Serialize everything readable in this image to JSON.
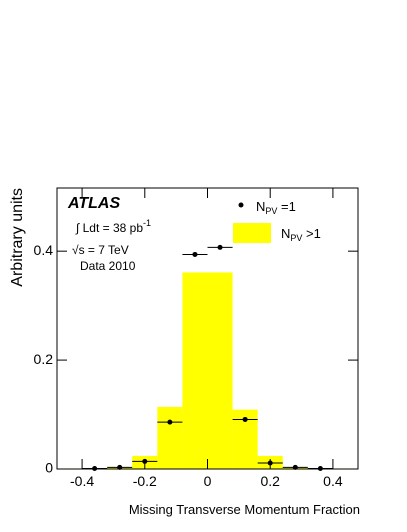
{
  "chart_data": {
    "type": "histogram",
    "xlabel": "Missing Transverse Momentum Fraction",
    "ylabel": "Arbitrary units",
    "annotations": {
      "experiment": "ATLAS",
      "lumi": "∫ Ldt = 38 pb",
      "lumi_sup": "-1",
      "energy": "√s = 7 TeV",
      "dataset": "Data 2010"
    },
    "bins": [
      -0.48,
      -0.4,
      -0.32,
      -0.24,
      -0.16,
      -0.08,
      0.08,
      0.16,
      0.24,
      0.32,
      0.4,
      0.48
    ],
    "counts": [
      0.001,
      0.001,
      0.003,
      0.024,
      0.114,
      0.361,
      0.109,
      0.024,
      0.003,
      0.001,
      0.001
    ],
    "hist_color": "#ffff00",
    "hist_legend": {
      "name": "N",
      "sub": "PV",
      "suffix": " >1"
    },
    "series": [
      {
        "name": "N",
        "sub": "PV",
        "suffix": " =1",
        "color": "#000000",
        "x": [
          -0.36,
          -0.28,
          -0.2,
          -0.12,
          -0.04,
          0.04,
          0.12,
          0.2,
          0.28,
          0.36
        ],
        "values": [
          0.001,
          0.003,
          0.014,
          0.086,
          0.394,
          0.407,
          0.091,
          0.011,
          0.003,
          0.001
        ],
        "xerr": 0.04
      }
    ],
    "xlim": [
      -0.48,
      0.48
    ],
    "ylim": [
      0,
      0.516
    ],
    "xticks": [
      -0.4,
      -0.2,
      0,
      0.2,
      0.4
    ],
    "yticks": [
      0,
      0.2,
      0.4
    ]
  }
}
